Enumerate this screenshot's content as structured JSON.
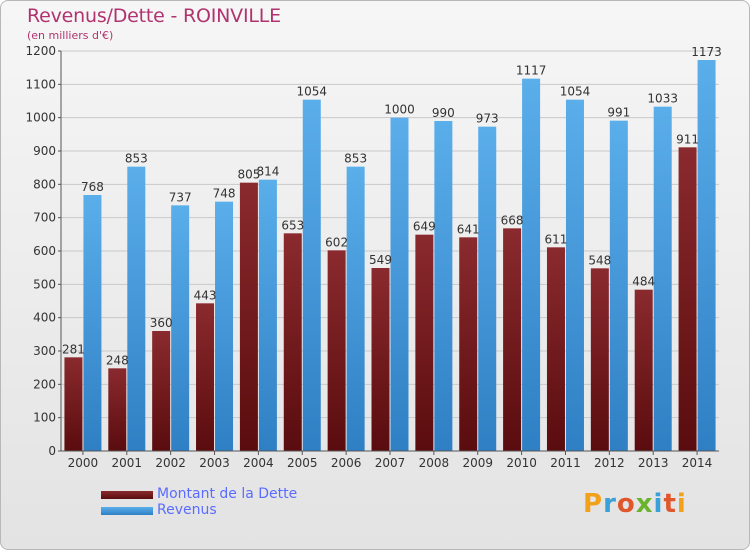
{
  "header": {
    "title": "Revenus/Dette - ROINVILLE",
    "subtitle": "(en milliers d'€)"
  },
  "colors": {
    "debt": "#7a1e22",
    "revenue": "#4d9fe0",
    "title": "#b0336f",
    "legend_text": "#5a6cff"
  },
  "legend": {
    "items": [
      {
        "label": "Montant de la Dette",
        "color": "#6b1214"
      },
      {
        "label": "Revenus",
        "color": "#4d9fe0"
      }
    ]
  },
  "logo": {
    "letters": [
      "P",
      "r",
      "o",
      "x",
      "i",
      "t",
      "i"
    ],
    "colors": [
      "#f2a21a",
      "#3aa0d8",
      "#e0572c",
      "#6ab42d",
      "#3aa0d8",
      "#e0572c",
      "#f2a21a"
    ]
  },
  "chart_data": {
    "type": "bar",
    "title": "Revenus/Dette - ROINVILLE",
    "subtitle": "(en milliers d'€)",
    "xlabel": "",
    "ylabel": "",
    "ylim": [
      0,
      1200
    ],
    "yticks": [
      0,
      100,
      200,
      300,
      400,
      500,
      600,
      700,
      800,
      900,
      1000,
      1100,
      1200
    ],
    "grid": true,
    "legend_position": "bottom-left",
    "categories": [
      "2000",
      "2001",
      "2002",
      "2003",
      "2004",
      "2005",
      "2006",
      "2007",
      "2008",
      "2009",
      "2010",
      "2011",
      "2012",
      "2013",
      "2014"
    ],
    "series": [
      {
        "name": "Montant de la Dette",
        "values": [
          281,
          248,
          360,
          443,
          805,
          653,
          602,
          549,
          649,
          641,
          668,
          611,
          548,
          484,
          911
        ]
      },
      {
        "name": "Revenus",
        "values": [
          768,
          853,
          737,
          748,
          814,
          1054,
          853,
          1000,
          990,
          973,
          1117,
          1054,
          991,
          1033,
          1173
        ]
      }
    ]
  }
}
